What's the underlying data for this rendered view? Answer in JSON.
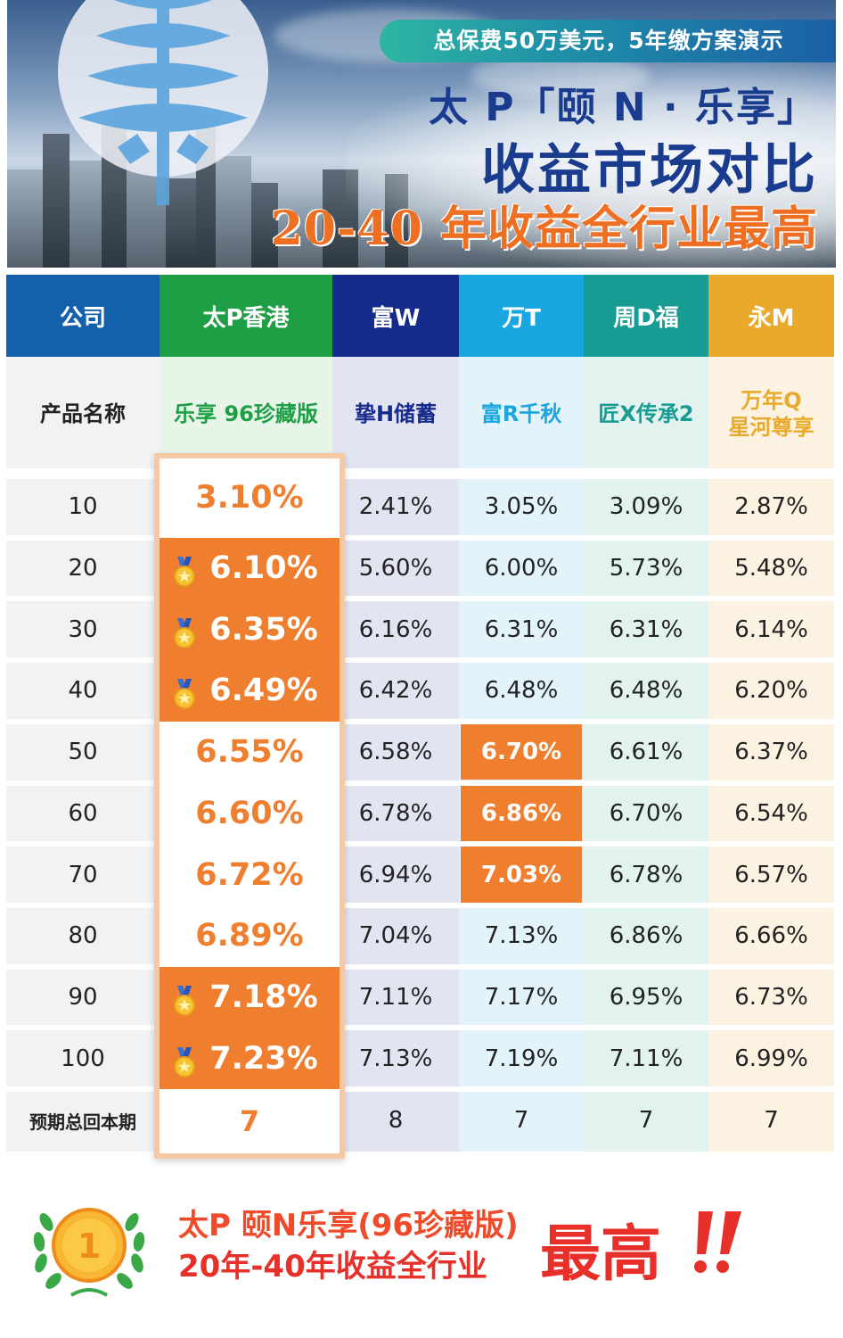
{
  "banner": {
    "ribbon": "总保费50万美元，5年缴方案演示",
    "line1": "太 P「颐 N · 乐享」",
    "line2": "收益市场对比",
    "line3": "20-40 年收益全行业最高"
  },
  "columns": [
    {
      "header": "公司",
      "product": "产品名称",
      "header_color": "#1560ab",
      "body_color": "#f2f2f2"
    },
    {
      "header": "太P香港",
      "product": "乐享 96珍藏版",
      "header_color": "#1e9e45",
      "body_color": "#e7f5e9",
      "product_color": "#1e9e45"
    },
    {
      "header": "富W",
      "product": "挚H储蓄",
      "header_color": "#162c8c",
      "body_color": "#e3e4f2",
      "product_color": "#162c8c"
    },
    {
      "header": "万T",
      "product": "富R千秋",
      "header_color": "#1aa6e0",
      "body_color": "#e2f3fa",
      "product_color": "#1aa6e0"
    },
    {
      "header": "周D福",
      "product": "匠X传承2",
      "header_color": "#169c93",
      "body_color": "#e1f2ef",
      "product_color": "#169c93"
    },
    {
      "header": "永M",
      "product_line1": "万年Q",
      "product_line2": "星河尊享",
      "header_color": "#e9a92a",
      "body_color": "#fcf2e1",
      "product_color": "#e9a92a"
    }
  ],
  "rows": [
    {
      "year": "10",
      "taip": "3.10%",
      "fuw": "2.41%",
      "want": "3.05%",
      "zhoud": "3.09%",
      "yongm": "2.87%"
    },
    {
      "year": "20",
      "taip": "6.10%",
      "fuw": "5.60%",
      "want": "6.00%",
      "zhoud": "5.73%",
      "yongm": "5.48%"
    },
    {
      "year": "30",
      "taip": "6.35%",
      "fuw": "6.16%",
      "want": "6.31%",
      "zhoud": "6.31%",
      "yongm": "6.14%"
    },
    {
      "year": "40",
      "taip": "6.49%",
      "fuw": "6.42%",
      "want": "6.48%",
      "zhoud": "6.48%",
      "yongm": "6.20%"
    },
    {
      "year": "50",
      "taip": "6.55%",
      "fuw": "6.58%",
      "want": "6.70%",
      "zhoud": "6.61%",
      "yongm": "6.37%"
    },
    {
      "year": "60",
      "taip": "6.60%",
      "fuw": "6.78%",
      "want": "6.86%",
      "zhoud": "6.70%",
      "yongm": "6.54%"
    },
    {
      "year": "70",
      "taip": "6.72%",
      "fuw": "6.94%",
      "want": "7.03%",
      "zhoud": "6.78%",
      "yongm": "6.57%"
    },
    {
      "year": "80",
      "taip": "6.89%",
      "fuw": "7.04%",
      "want": "7.13%",
      "zhoud": "6.86%",
      "yongm": "6.66%"
    },
    {
      "year": "90",
      "taip": "7.18%",
      "fuw": "7.11%",
      "want": "7.17%",
      "zhoud": "6.95%",
      "yongm": "6.73%"
    },
    {
      "year": "100",
      "taip": "7.23%",
      "fuw": "7.13%",
      "want": "7.19%",
      "zhoud": "7.11%",
      "yongm": "6.99%"
    }
  ],
  "breakeven": {
    "label": "预期总回本期",
    "taip": "7",
    "fuw": "8",
    "want": "7",
    "zhoud": "7",
    "yongm": "7"
  },
  "highlight_color": "#ef7f2f",
  "footer": {
    "badge_number": "1",
    "line1": "太P 颐N乐享(96珍藏版)",
    "line2": "20年-40年收益全行业",
    "big": "最高"
  }
}
